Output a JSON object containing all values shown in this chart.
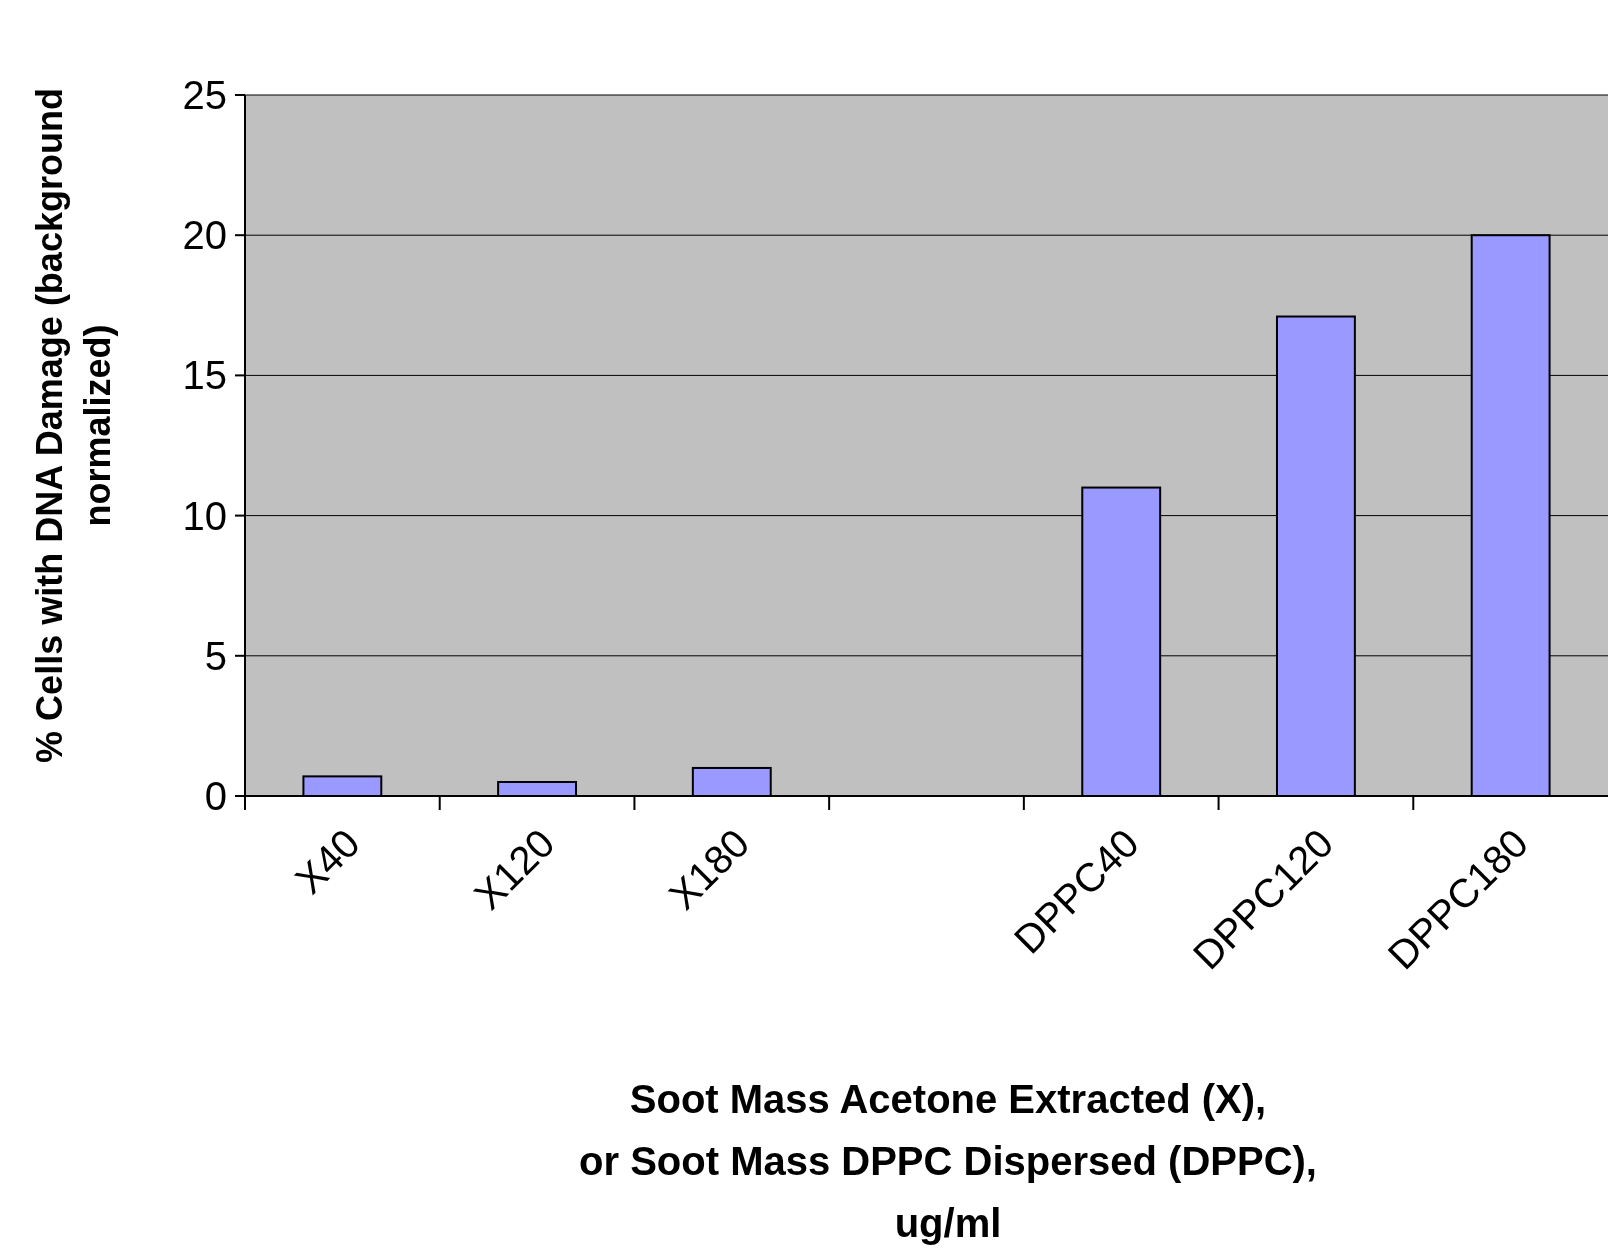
{
  "chart_data": {
    "type": "bar",
    "xlabel": "Soot Mass  Acetone Extracted (X),\nor Soot Mass DPPC Dispersed (DPPC),\nug/ml",
    "ylabel": "% Cells with DNA Damage (background\nnormalized)",
    "categories": [
      "X40",
      "X120",
      "X180",
      null,
      "DPPC40",
      "DPPC120",
      "DPPC180"
    ],
    "values": [
      0.7,
      0.5,
      1.0,
      null,
      11,
      17.1,
      20
    ],
    "color": "#9999ff",
    "ylim": [
      0,
      25
    ],
    "yticks": [
      0,
      5,
      10,
      15,
      20,
      25
    ],
    "grid": "y"
  }
}
